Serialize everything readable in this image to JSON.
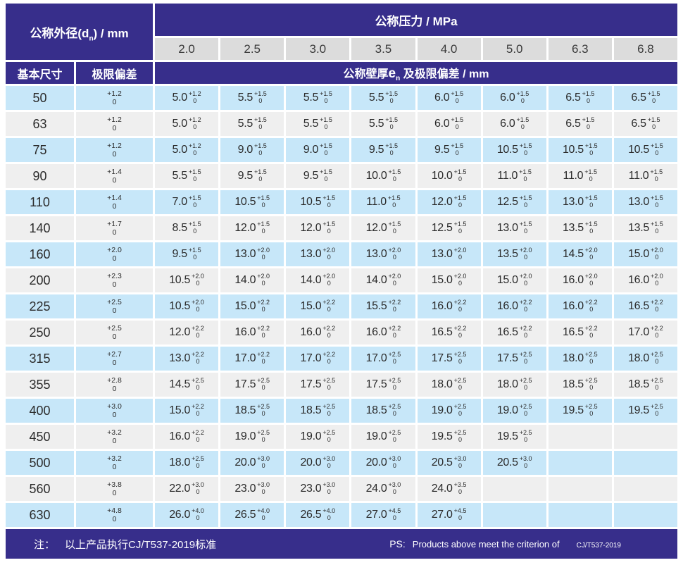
{
  "header": {
    "outer_diameter": {
      "pre": "公称外径(d",
      "sub": "n",
      "post": ") / mm"
    },
    "pressure_label": "公称压力 / MPa",
    "pressures": [
      "2.0",
      "2.5",
      "3.0",
      "3.5",
      "4.0",
      "5.0",
      "6.3",
      "6.8"
    ],
    "basic_size_label": "基本尺寸",
    "deviation_label": "极限偏差",
    "wall": {
      "pre": "公称壁厚",
      "e": "e",
      "sub": "n",
      "post": " 及极限偏差 / mm"
    }
  },
  "table": {
    "tol_lower": "0",
    "rows": [
      {
        "size": "50",
        "tol_plus": "+1.2",
        "cells": [
          {
            "v": "5.0",
            "p": "+1.2"
          },
          {
            "v": "5.5",
            "p": "+1.5"
          },
          {
            "v": "5.5",
            "p": "+1.5"
          },
          {
            "v": "5.5",
            "p": "+1.5"
          },
          {
            "v": "6.0",
            "p": "+1.5"
          },
          {
            "v": "6.0",
            "p": "+1.5"
          },
          {
            "v": "6.5",
            "p": "+1.5"
          },
          {
            "v": "6.5",
            "p": "+1.5"
          }
        ]
      },
      {
        "size": "63",
        "tol_plus": "+1.2",
        "cells": [
          {
            "v": "5.0",
            "p": "+1.2"
          },
          {
            "v": "5.5",
            "p": "+1.5"
          },
          {
            "v": "5.5",
            "p": "+1.5"
          },
          {
            "v": "5.5",
            "p": "+1.5"
          },
          {
            "v": "6.0",
            "p": "+1.5"
          },
          {
            "v": "6.0",
            "p": "+1.5"
          },
          {
            "v": "6.5",
            "p": "+1.5"
          },
          {
            "v": "6.5",
            "p": "+1.5"
          }
        ]
      },
      {
        "size": "75",
        "tol_plus": "+1.2",
        "cells": [
          {
            "v": "5.0",
            "p": "+1.2"
          },
          {
            "v": "9.0",
            "p": "+1.5"
          },
          {
            "v": "9.0",
            "p": "+1.5"
          },
          {
            "v": "9.5",
            "p": "+1.5"
          },
          {
            "v": "9.5",
            "p": "+1.5"
          },
          {
            "v": "10.5",
            "p": "+1.5"
          },
          {
            "v": "10.5",
            "p": "+1.5"
          },
          {
            "v": "10.5",
            "p": "+1.5"
          }
        ]
      },
      {
        "size": "90",
        "tol_plus": "+1.4",
        "cells": [
          {
            "v": "5.5",
            "p": "+1.5"
          },
          {
            "v": "9.5",
            "p": "+1.5"
          },
          {
            "v": "9.5",
            "p": "+1.5"
          },
          {
            "v": "10.0",
            "p": "+1.5"
          },
          {
            "v": "10.0",
            "p": "+1.5"
          },
          {
            "v": "11.0",
            "p": "+1.5"
          },
          {
            "v": "11.0",
            "p": "+1.5"
          },
          {
            "v": "11.0",
            "p": "+1.5"
          }
        ]
      },
      {
        "size": "110",
        "tol_plus": "+1.4",
        "cells": [
          {
            "v": "7.0",
            "p": "+1.5"
          },
          {
            "v": "10.5",
            "p": "+1.5"
          },
          {
            "v": "10.5",
            "p": "+1.5"
          },
          {
            "v": "11.0",
            "p": "+1.5"
          },
          {
            "v": "12.0",
            "p": "+1.5"
          },
          {
            "v": "12.5",
            "p": "+1.5"
          },
          {
            "v": "13.0",
            "p": "+1.5"
          },
          {
            "v": "13.0",
            "p": "+1.5"
          }
        ]
      },
      {
        "size": "140",
        "tol_plus": "+1.7",
        "cells": [
          {
            "v": "8.5",
            "p": "+1.5"
          },
          {
            "v": "12.0",
            "p": "+1.5"
          },
          {
            "v": "12.0",
            "p": "+1.5"
          },
          {
            "v": "12.0",
            "p": "+1.5"
          },
          {
            "v": "12.5",
            "p": "+1.5"
          },
          {
            "v": "13.0",
            "p": "+1.5"
          },
          {
            "v": "13.5",
            "p": "+1.5"
          },
          {
            "v": "13.5",
            "p": "+1.5"
          }
        ]
      },
      {
        "size": "160",
        "tol_plus": "+2.0",
        "cells": [
          {
            "v": "9.5",
            "p": "+1.5"
          },
          {
            "v": "13.0",
            "p": "+2.0"
          },
          {
            "v": "13.0",
            "p": "+2.0"
          },
          {
            "v": "13.0",
            "p": "+2.0"
          },
          {
            "v": "13.0",
            "p": "+2.0"
          },
          {
            "v": "13.5",
            "p": "+2.0"
          },
          {
            "v": "14.5",
            "p": "+2.0"
          },
          {
            "v": "15.0",
            "p": "+2.0"
          }
        ]
      },
      {
        "size": "200",
        "tol_plus": "+2.3",
        "cells": [
          {
            "v": "10.5",
            "p": "+2.0"
          },
          {
            "v": "14.0",
            "p": "+2.0"
          },
          {
            "v": "14.0",
            "p": "+2.0"
          },
          {
            "v": "14.0",
            "p": "+2.0"
          },
          {
            "v": "15.0",
            "p": "+2.0"
          },
          {
            "v": "15.0",
            "p": "+2.0"
          },
          {
            "v": "16.0",
            "p": "+2.0"
          },
          {
            "v": "16.0",
            "p": "+2.0"
          }
        ]
      },
      {
        "size": "225",
        "tol_plus": "+2.5",
        "cells": [
          {
            "v": "10.5",
            "p": "+2.0"
          },
          {
            "v": "15.0",
            "p": "+2.2"
          },
          {
            "v": "15.0",
            "p": "+2.2"
          },
          {
            "v": "15.5",
            "p": "+2.2"
          },
          {
            "v": "16.0",
            "p": "+2.2"
          },
          {
            "v": "16.0",
            "p": "+2.2"
          },
          {
            "v": "16.0",
            "p": "+2.2"
          },
          {
            "v": "16.5",
            "p": "+2.2"
          }
        ]
      },
      {
        "size": "250",
        "tol_plus": "+2.5",
        "cells": [
          {
            "v": "12.0",
            "p": "+2.2"
          },
          {
            "v": "16.0",
            "p": "+2.2"
          },
          {
            "v": "16.0",
            "p": "+2.2"
          },
          {
            "v": "16.0",
            "p": "+2.2"
          },
          {
            "v": "16.5",
            "p": "+2.2"
          },
          {
            "v": "16.5",
            "p": "+2.2"
          },
          {
            "v": "16.5",
            "p": "+2.2"
          },
          {
            "v": "17.0",
            "p": "+2.2"
          }
        ]
      },
      {
        "size": "315",
        "tol_plus": "+2.7",
        "cells": [
          {
            "v": "13.0",
            "p": "+2.2"
          },
          {
            "v": "17.0",
            "p": "+2.2"
          },
          {
            "v": "17.0",
            "p": "+2.2"
          },
          {
            "v": "17.0",
            "p": "+2.5"
          },
          {
            "v": "17.5",
            "p": "+2.5"
          },
          {
            "v": "17.5",
            "p": "+2.5"
          },
          {
            "v": "18.0",
            "p": "+2.5"
          },
          {
            "v": "18.0",
            "p": "+2.5"
          }
        ]
      },
      {
        "size": "355",
        "tol_plus": "+2.8",
        "cells": [
          {
            "v": "14.5",
            "p": "+2.5"
          },
          {
            "v": "17.5",
            "p": "+2.5"
          },
          {
            "v": "17.5",
            "p": "+2.5"
          },
          {
            "v": "17.5",
            "p": "+2.5"
          },
          {
            "v": "18.0",
            "p": "+2.5"
          },
          {
            "v": "18.0",
            "p": "+2.5"
          },
          {
            "v": "18.5",
            "p": "+2.5"
          },
          {
            "v": "18.5",
            "p": "+2.5"
          }
        ]
      },
      {
        "size": "400",
        "tol_plus": "+3.0",
        "cells": [
          {
            "v": "15.0",
            "p": "+2.2"
          },
          {
            "v": "18.5",
            "p": "+2.5"
          },
          {
            "v": "18.5",
            "p": "+2.5"
          },
          {
            "v": "18.5",
            "p": "+2.5"
          },
          {
            "v": "19.0",
            "p": "+2.5"
          },
          {
            "v": "19.0",
            "p": "+2.5"
          },
          {
            "v": "19.5",
            "p": "+2.5"
          },
          {
            "v": "19.5",
            "p": "+2.5"
          }
        ]
      },
      {
        "size": "450",
        "tol_plus": "+3.2",
        "cells": [
          {
            "v": "16.0",
            "p": "+2.2"
          },
          {
            "v": "19.0",
            "p": "+2.5"
          },
          {
            "v": "19.0",
            "p": "+2.5"
          },
          {
            "v": "19.0",
            "p": "+2.5"
          },
          {
            "v": "19.5",
            "p": "+2.5"
          },
          {
            "v": "19.5",
            "p": "+2.5"
          },
          null,
          null
        ]
      },
      {
        "size": "500",
        "tol_plus": "+3.2",
        "cells": [
          {
            "v": "18.0",
            "p": "+2.5"
          },
          {
            "v": "20.0",
            "p": "+3.0"
          },
          {
            "v": "20.0",
            "p": "+3.0"
          },
          {
            "v": "20.0",
            "p": "+3.0"
          },
          {
            "v": "20.5",
            "p": "+3.0"
          },
          {
            "v": "20.5",
            "p": "+3.0"
          },
          null,
          null
        ]
      },
      {
        "size": "560",
        "tol_plus": "+3.8",
        "cells": [
          {
            "v": "22.0",
            "p": "+3.0"
          },
          {
            "v": "23.0",
            "p": "+3.0"
          },
          {
            "v": "23.0",
            "p": "+3.0"
          },
          {
            "v": "24.0",
            "p": "+3.0"
          },
          {
            "v": "24.0",
            "p": "+3.5"
          },
          null,
          null,
          null
        ]
      },
      {
        "size": "630",
        "tol_plus": "+4.8",
        "cells": [
          {
            "v": "26.0",
            "p": "+4.0"
          },
          {
            "v": "26.5",
            "p": "+4.0"
          },
          {
            "v": "26.5",
            "p": "+4.0"
          },
          {
            "v": "27.0",
            "p": "+4.5"
          },
          {
            "v": "27.0",
            "p": "+4.5"
          },
          null,
          null,
          null
        ]
      }
    ]
  },
  "footer": {
    "note_label": "注：",
    "note_text": "以上产品执行CJ/T537-2019标准",
    "ps_label": "PS:",
    "ps_text": "Products above meet the criterion of",
    "ps_standard": "CJ/T537-2019"
  },
  "colors": {
    "indigo": "#372e8b",
    "light_blue": "#c7e7f9",
    "light_gray": "#efefef",
    "pill_gray": "#dcdcdc"
  }
}
